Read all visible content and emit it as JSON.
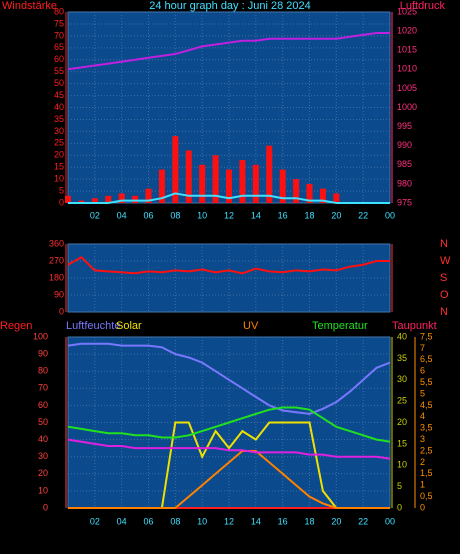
{
  "chart_data": [
    {
      "type": "line",
      "title": "24 hour graph day : Juni 28 2024",
      "x": [
        0,
        1,
        2,
        3,
        4,
        5,
        6,
        7,
        8,
        9,
        10,
        11,
        12,
        13,
        14,
        15,
        16,
        17,
        18,
        19,
        20,
        21,
        22,
        23,
        24
      ],
      "xlim": [
        0,
        24
      ],
      "xticks": [
        {
          "value": 2,
          "label": "02"
        },
        {
          "value": 4,
          "label": "04"
        },
        {
          "value": 6,
          "label": "06"
        },
        {
          "value": 8,
          "label": "08"
        },
        10,
        12,
        14,
        16,
        18,
        20,
        22,
        {
          "value": 24,
          "label": "00"
        }
      ],
      "ylim": [
        0,
        80
      ],
      "yticks": [
        0,
        5,
        10,
        15,
        20,
        25,
        30,
        35,
        40,
        45,
        50,
        55,
        60,
        65,
        70,
        75,
        80
      ],
      "y2lim": [
        975,
        1025
      ],
      "y2ticks": [
        975,
        980,
        985,
        990,
        995,
        1000,
        1005,
        1010,
        1015,
        1020,
        1025
      ],
      "grid": true,
      "series": [
        {
          "name": "Windstärke",
          "color": "#ff1010",
          "style": "bar",
          "values": [
            3,
            1,
            2,
            3,
            4,
            3,
            6,
            14,
            28,
            22,
            16,
            20,
            14,
            18,
            16,
            24,
            14,
            10,
            8,
            6,
            4,
            0,
            0,
            0,
            0
          ]
        },
        {
          "color": "#40e0ff",
          "values": [
            0,
            0,
            0,
            0,
            1,
            1,
            1,
            2,
            4,
            3,
            3,
            3,
            2,
            3,
            3,
            3,
            2,
            2,
            1,
            1,
            0,
            0,
            0,
            0,
            0
          ]
        },
        {
          "name": "Luftdruck",
          "color": "#c020e0",
          "axis": "y2",
          "values": [
            1010,
            1010.5,
            1011,
            1011.5,
            1012,
            1012.5,
            1013,
            1013.5,
            1014,
            1015,
            1016,
            1016.5,
            1017,
            1017.5,
            1017.5,
            1018,
            1018,
            1018,
            1018,
            1018,
            1018,
            1018.5,
            1019,
            1019.5,
            1019.5
          ]
        }
      ]
    },
    {
      "type": "line",
      "x": [
        0,
        1,
        2,
        3,
        4,
        5,
        6,
        7,
        8,
        9,
        10,
        11,
        12,
        13,
        14,
        15,
        16,
        17,
        18,
        19,
        20,
        21,
        22,
        23,
        24
      ],
      "xlim": [
        0,
        24
      ],
      "xticks": [
        {
          "value": 2,
          "label": "02"
        },
        {
          "value": 4,
          "label": "04"
        },
        {
          "value": 6,
          "label": "06"
        },
        {
          "value": 8,
          "label": "08"
        },
        10,
        12,
        14,
        16,
        18,
        20,
        22,
        {
          "value": 24,
          "label": "00"
        }
      ],
      "ylim": [
        0,
        360
      ],
      "yticks": [
        0,
        90,
        180,
        270,
        360
      ],
      "y2lim": [
        0,
        360
      ],
      "y2ticks": [
        {
          "value": 0,
          "label": "N"
        },
        {
          "value": 90,
          "label": "O"
        },
        {
          "value": 180,
          "label": "S"
        },
        {
          "value": 270,
          "label": "W"
        },
        {
          "value": 360,
          "label": "N"
        }
      ],
      "grid": true,
      "series": [
        {
          "color": "#ff1010",
          "values": [
            250,
            290,
            220,
            215,
            210,
            205,
            215,
            210,
            220,
            215,
            225,
            210,
            220,
            205,
            230,
            215,
            210,
            220,
            215,
            225,
            220,
            240,
            250,
            270,
            270
          ]
        }
      ]
    },
    {
      "type": "line",
      "x": [
        0,
        1,
        2,
        3,
        4,
        5,
        6,
        7,
        8,
        9,
        10,
        11,
        12,
        13,
        14,
        15,
        16,
        17,
        18,
        19,
        20,
        21,
        22,
        23,
        24
      ],
      "xlim": [
        0,
        24
      ],
      "xticks": [
        {
          "value": 2,
          "label": "02"
        },
        {
          "value": 4,
          "label": "04"
        },
        {
          "value": 6,
          "label": "06"
        },
        {
          "value": 8,
          "label": "08"
        },
        10,
        12,
        14,
        16,
        18,
        20,
        22,
        {
          "value": 24,
          "label": "00"
        }
      ],
      "ylim": [
        0,
        100
      ],
      "yticks": [
        0,
        10,
        20,
        30,
        40,
        50,
        60,
        70,
        80,
        90,
        100
      ],
      "y2lim": [
        0,
        40
      ],
      "y2ticks": [
        0,
        5,
        10,
        15,
        20,
        25,
        30,
        35,
        40
      ],
      "y3lim": [
        0,
        7.5
      ],
      "y3ticks": [
        0,
        {
          "value": 0.5,
          "label": "0,5"
        },
        1,
        {
          "value": 1.5,
          "label": "1,5"
        },
        2,
        {
          "value": 2.5,
          "label": "2,5"
        },
        3,
        {
          "value": 3.5,
          "label": "3,5"
        },
        4,
        {
          "value": 4.5,
          "label": "4,5"
        },
        5,
        {
          "value": 5.5,
          "label": "5,5"
        },
        6,
        {
          "value": 6.5,
          "label": "6,5"
        },
        7,
        {
          "value": 7.5,
          "label": "7,5"
        }
      ],
      "grid": true,
      "series": [
        {
          "name": "Regen",
          "color": "#ff2020",
          "values": [
            0,
            0,
            0,
            0,
            0,
            0,
            0,
            0,
            0,
            0,
            0,
            0,
            0,
            0,
            0,
            0,
            0,
            0,
            0,
            0,
            0,
            0,
            0,
            0,
            0
          ]
        },
        {
          "name": "Luftfeuchte",
          "color": "#7878ff",
          "values": [
            95,
            96,
            96,
            96,
            95,
            95,
            95,
            94,
            90,
            88,
            85,
            80,
            75,
            70,
            65,
            60,
            57,
            56,
            55,
            58,
            62,
            68,
            75,
            82,
            85
          ]
        },
        {
          "name": "Solar",
          "color": "#f0e000",
          "values": [
            0,
            0,
            0,
            0,
            0,
            0,
            0,
            0,
            50,
            50,
            30,
            45,
            35,
            45,
            40,
            50,
            50,
            50,
            50,
            10,
            0,
            0,
            0,
            0,
            0
          ]
        },
        {
          "name": "UV",
          "color": "#ff8000",
          "axis": "y3",
          "values": [
            0,
            0,
            0,
            0,
            0,
            0,
            0,
            0,
            0,
            0.5,
            1,
            1.5,
            2,
            2.5,
            2.5,
            2,
            1.5,
            1,
            0.5,
            0.2,
            0,
            0,
            0,
            0,
            0
          ]
        },
        {
          "name": "Temperatur",
          "color": "#20e020",
          "axis": "y2",
          "values": [
            19,
            18.5,
            18,
            17.5,
            17.5,
            17,
            17,
            16.5,
            16.5,
            17,
            18,
            19,
            20,
            21,
            22,
            23,
            23.5,
            23.5,
            23,
            21,
            19,
            18,
            17,
            16,
            15.5
          ]
        },
        {
          "name": "Taupunkt",
          "color": "#e020e0",
          "axis": "y2",
          "values": [
            16,
            15.5,
            15,
            14.5,
            14.5,
            14,
            14,
            14,
            14,
            14,
            14,
            14,
            13.5,
            13.5,
            13,
            13,
            13,
            13,
            12.5,
            12.5,
            12,
            12,
            12,
            12,
            11.5
          ]
        }
      ]
    }
  ]
}
